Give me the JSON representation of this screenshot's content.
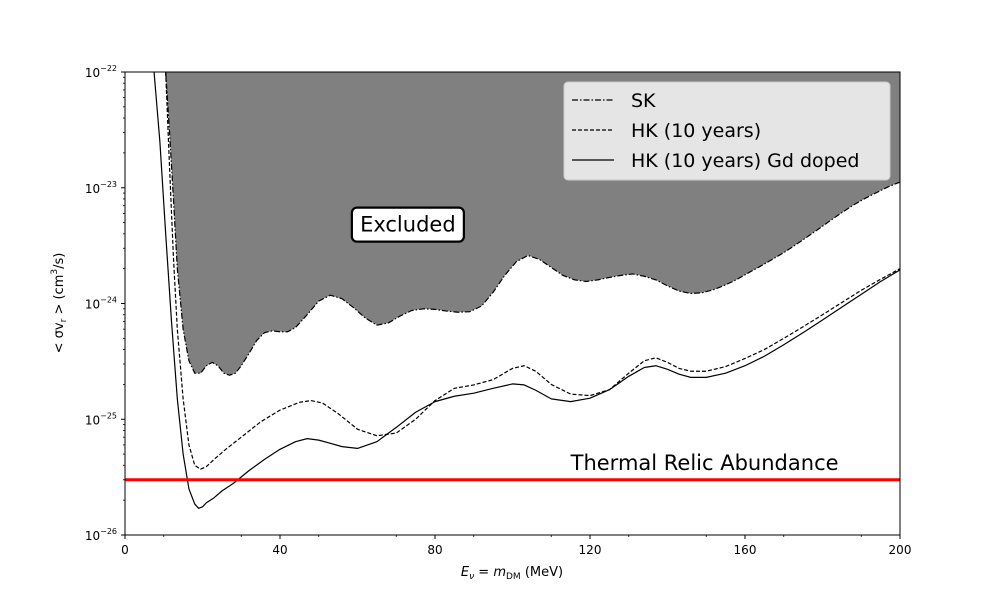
{
  "chart_data": {
    "type": "line",
    "x_scale": "linear",
    "y_scale": "log",
    "xlim": [
      0,
      200
    ],
    "ylim": [
      1e-26,
      1e-22
    ],
    "xlabel": "E_ν = m_DM (MeV)",
    "xlabel_parts": {
      "main": "E",
      "sub1": "ν",
      "eq": " = m",
      "sub2": "DM",
      "unit": " (MeV)"
    },
    "ylabel": "< σv_r > (cm³/s)",
    "ylabel_parts": {
      "open": "< σv",
      "sub": "r",
      "close": " > (cm",
      "sup": "3",
      "unit": "/s)"
    },
    "x_ticks": [
      {
        "value": 0,
        "label": "0"
      },
      {
        "value": 40,
        "label": "40"
      },
      {
        "value": 80,
        "label": "80"
      },
      {
        "value": 120,
        "label": "120"
      },
      {
        "value": 160,
        "label": "160"
      },
      {
        "value": 200,
        "label": "200"
      }
    ],
    "y_ticks": [
      {
        "exp": -26,
        "base": "10",
        "sup": "−26"
      },
      {
        "exp": -25,
        "base": "10",
        "sup": "−25"
      },
      {
        "exp": -24,
        "base": "10",
        "sup": "−24"
      },
      {
        "exp": -23,
        "base": "10",
        "sup": "−23"
      },
      {
        "exp": -22,
        "base": "10",
        "sup": "−22"
      }
    ],
    "legend_position": "top-right",
    "grid": false,
    "excluded_region": {
      "label": "Excluded",
      "color": "#808080",
      "bounded_by": "SK",
      "label_at": {
        "x": 73,
        "y": 4.8e-24
      }
    },
    "series": [
      {
        "name": "SK",
        "style": "dashdot",
        "color": "#000000",
        "x": [
          10.5,
          11.5,
          12.5,
          13.5,
          15,
          16.5,
          18,
          19.5,
          21,
          22.5,
          24,
          25.5,
          27,
          28.5,
          30,
          32,
          34,
          36,
          38,
          40,
          42,
          44,
          47,
          50,
          53,
          56,
          59,
          62,
          65,
          68,
          71,
          74,
          77,
          80,
          83,
          86,
          89,
          92,
          95,
          98,
          101,
          104,
          107,
          110,
          113,
          116,
          119,
          122,
          125,
          128,
          131,
          134,
          137,
          140,
          143,
          146,
          149,
          152,
          155,
          158,
          161,
          164,
          167,
          170,
          173,
          176,
          179,
          182,
          185,
          188,
          191,
          194,
          197,
          200
        ],
        "y": [
          1e-22,
          3e-23,
          8e-24,
          2e-24,
          6e-25,
          3.2e-25,
          2.5e-25,
          2.5e-25,
          2.9e-25,
          3.1e-25,
          2.9e-25,
          2.5e-25,
          2.4e-25,
          2.5e-25,
          2.9e-25,
          3.7e-25,
          4.8e-25,
          5.6e-25,
          5.8e-25,
          5.7e-25,
          5.7e-25,
          6.2e-25,
          8e-25,
          1.05e-24,
          1.18e-24,
          1.1e-24,
          9.2e-25,
          7.5e-25,
          6.5e-25,
          6.8e-25,
          7.8e-25,
          8.7e-25,
          9e-25,
          8.9e-25,
          8.6e-25,
          8.4e-25,
          8.5e-25,
          9.5e-25,
          1.25e-24,
          1.75e-24,
          2.3e-24,
          2.6e-24,
          2.4e-24,
          2.05e-24,
          1.75e-24,
          1.6e-24,
          1.55e-24,
          1.6e-24,
          1.68e-24,
          1.75e-24,
          1.8e-24,
          1.72e-24,
          1.6e-24,
          1.42e-24,
          1.28e-24,
          1.22e-24,
          1.24e-24,
          1.32e-24,
          1.45e-24,
          1.62e-24,
          1.85e-24,
          2.1e-24,
          2.4e-24,
          2.75e-24,
          3.2e-24,
          3.75e-24,
          4.4e-24,
          5.2e-24,
          6.1e-24,
          7.1e-24,
          8.1e-24,
          9.1e-24,
          1.02e-23,
          1.12e-23
        ]
      },
      {
        "name": "HK (10 years)",
        "style": "dashed",
        "color": "#000000",
        "x": [
          10.5,
          11.5,
          12.5,
          13.5,
          15,
          16.5,
          18,
          19.5,
          21,
          23,
          26,
          30,
          35,
          40,
          45,
          48,
          51,
          55,
          60,
          65,
          70,
          75,
          80,
          85,
          90,
          95,
          100,
          103,
          106,
          110,
          115,
          120,
          125,
          130,
          134,
          137,
          140,
          143,
          146,
          150,
          155,
          160,
          165,
          170,
          175,
          180,
          185,
          190,
          195,
          200
        ],
        "y": [
          1e-22,
          1.5e-23,
          2.5e-24,
          6e-25,
          1.5e-25,
          6e-26,
          4e-26,
          3.7e-26,
          3.9e-26,
          4.5e-26,
          5.5e-26,
          7e-26,
          9.5e-26,
          1.2e-25,
          1.4e-25,
          1.45e-25,
          1.38e-25,
          1.12e-25,
          8.2e-26,
          7.2e-26,
          7.6e-26,
          1e-25,
          1.45e-25,
          1.85e-25,
          1.98e-25,
          2.2e-25,
          2.75e-25,
          2.9e-25,
          2.6e-25,
          2e-25,
          1.65e-25,
          1.6e-25,
          1.8e-25,
          2.5e-25,
          3.2e-25,
          3.4e-25,
          3.1e-25,
          2.75e-25,
          2.6e-25,
          2.6e-25,
          2.85e-25,
          3.35e-25,
          4e-25,
          5e-25,
          6.3e-25,
          8e-25,
          1.02e-24,
          1.3e-24,
          1.62e-24,
          2e-24
        ]
      },
      {
        "name": "HK (10 years) Gd doped",
        "style": "solid",
        "color": "#000000",
        "x": [
          7.5,
          9,
          10.5,
          12,
          13.5,
          15,
          16.5,
          18,
          19,
          20,
          21,
          23,
          25,
          28,
          32,
          36,
          40,
          44,
          47,
          50,
          53,
          56,
          60,
          65,
          70,
          75,
          80,
          85,
          90,
          95,
          100,
          103,
          106,
          110,
          115,
          120,
          125,
          130,
          134,
          137,
          140,
          143,
          146,
          150,
          155,
          160,
          165,
          170,
          175,
          180,
          185,
          190,
          195,
          200
        ],
        "y": [
          1e-22,
          2.5e-23,
          4e-24,
          7e-25,
          1.5e-25,
          5e-26,
          2.5e-26,
          1.85e-26,
          1.7e-26,
          1.75e-26,
          1.9e-26,
          2.1e-26,
          2.4e-26,
          2.8e-26,
          3.6e-26,
          4.5e-26,
          5.5e-26,
          6.4e-26,
          6.8e-26,
          6.6e-26,
          6.2e-26,
          5.8e-26,
          5.6e-26,
          6.4e-26,
          8.5e-26,
          1.15e-25,
          1.42e-25,
          1.58e-25,
          1.68e-25,
          1.85e-25,
          2.02e-25,
          1.98e-25,
          1.78e-25,
          1.5e-25,
          1.42e-25,
          1.52e-25,
          1.8e-25,
          2.35e-25,
          2.8e-25,
          2.9e-25,
          2.7e-25,
          2.45e-25,
          2.3e-25,
          2.3e-25,
          2.5e-25,
          2.9e-25,
          3.5e-25,
          4.4e-25,
          5.6e-25,
          7.2e-25,
          9.3e-25,
          1.2e-24,
          1.55e-24,
          1.95e-24
        ]
      }
    ],
    "hlines": [
      {
        "name": "Thermal Relic Abundance",
        "y": 3e-26,
        "color": "#ff0000",
        "label_at": {
          "x": 115,
          "y": 4.2e-26
        }
      }
    ]
  }
}
